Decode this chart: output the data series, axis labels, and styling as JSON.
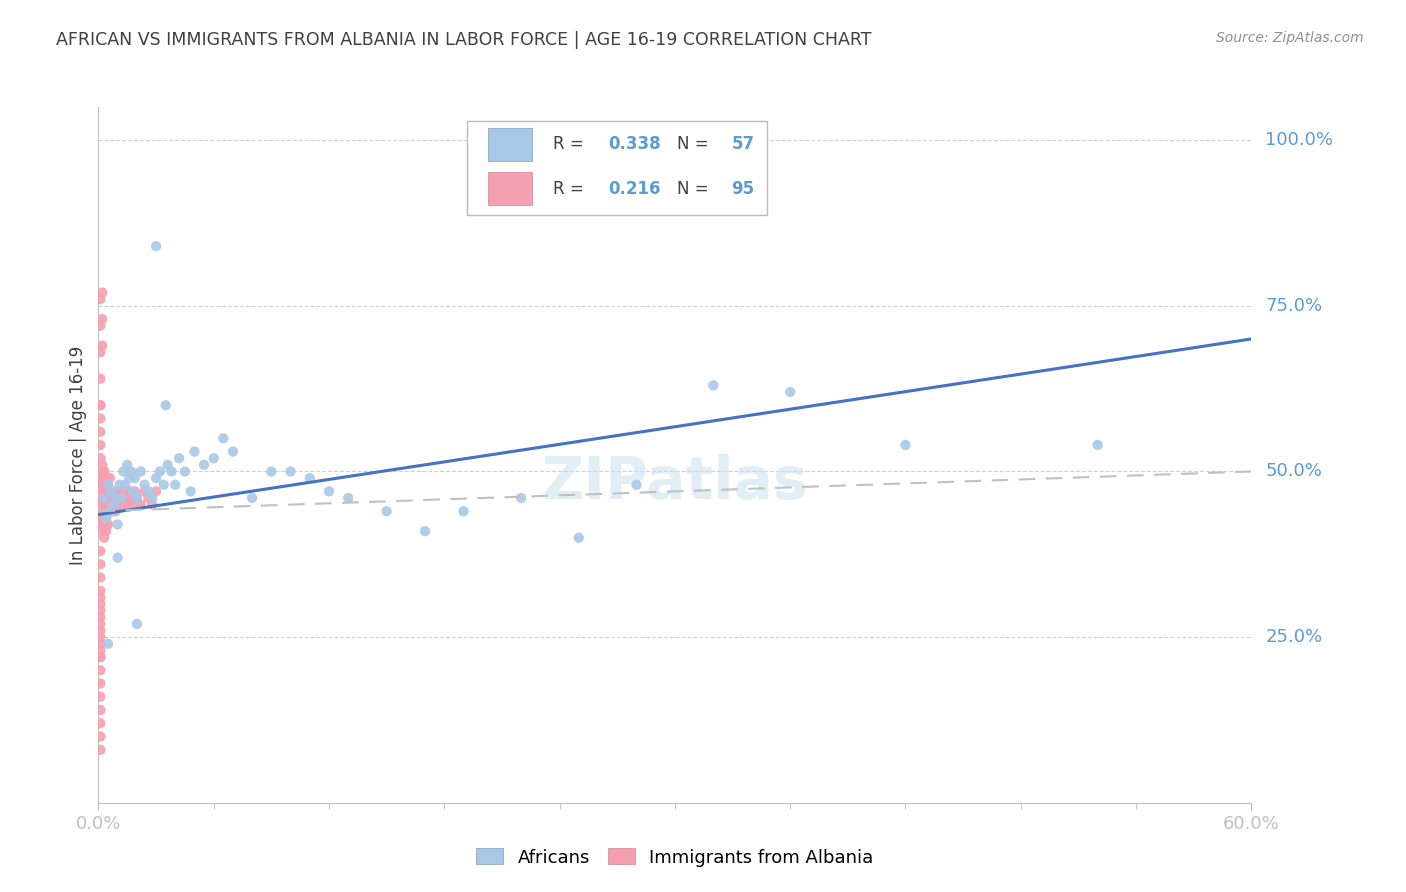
{
  "title": "AFRICAN VS IMMIGRANTS FROM ALBANIA IN LABOR FORCE | AGE 16-19 CORRELATION CHART",
  "source": "Source: ZipAtlas.com",
  "ylabel": "In Labor Force | Age 16-19",
  "xlim": [
    0.0,
    0.6
  ],
  "ylim": [
    0.0,
    1.05
  ],
  "ytick_vals": [
    0.25,
    0.5,
    0.75,
    1.0
  ],
  "ytick_labels": [
    "25.0%",
    "50.0%",
    "75.0%",
    "100.0%"
  ],
  "xtick_vals": [
    0.0,
    0.6
  ],
  "xtick_labels": [
    "0.0%",
    "60.0%"
  ],
  "legend_africans_R": "0.338",
  "legend_africans_N": "57",
  "legend_albania_R": "0.216",
  "legend_albania_N": "95",
  "color_africans": "#a8c8e8",
  "color_albania": "#f4a0b0",
  "color_trend_africans": "#4472c4",
  "color_trend_albania": "#c0c0c0",
  "color_ytick_labels": "#5b9bd5",
  "color_xtick_labels": "#5b9bd5",
  "color_grid": "#d0d0d0",
  "color_axis": "#c0c0c0",
  "color_title": "#404040",
  "color_source": "#909090",
  "watermark": "ZIPatlas",
  "af_x": [
    0.003,
    0.004,
    0.005,
    0.006,
    0.007,
    0.008,
    0.009,
    0.01,
    0.011,
    0.012,
    0.013,
    0.014,
    0.015,
    0.016,
    0.017,
    0.018,
    0.019,
    0.02,
    0.022,
    0.024,
    0.026,
    0.028,
    0.03,
    0.032,
    0.034,
    0.036,
    0.038,
    0.04,
    0.042,
    0.045,
    0.048,
    0.05,
    0.055,
    0.06,
    0.065,
    0.07,
    0.08,
    0.09,
    0.1,
    0.11,
    0.12,
    0.13,
    0.15,
    0.17,
    0.19,
    0.22,
    0.25,
    0.28,
    0.32,
    0.36,
    0.42,
    0.52,
    0.03,
    0.005,
    0.01,
    0.02,
    0.035
  ],
  "af_y": [
    0.46,
    0.43,
    0.48,
    0.44,
    0.47,
    0.45,
    0.46,
    0.42,
    0.48,
    0.46,
    0.5,
    0.48,
    0.51,
    0.49,
    0.5,
    0.47,
    0.49,
    0.46,
    0.5,
    0.48,
    0.47,
    0.46,
    0.49,
    0.5,
    0.48,
    0.51,
    0.5,
    0.48,
    0.52,
    0.5,
    0.47,
    0.53,
    0.51,
    0.52,
    0.55,
    0.53,
    0.46,
    0.5,
    0.5,
    0.49,
    0.47,
    0.46,
    0.44,
    0.41,
    0.44,
    0.46,
    0.4,
    0.48,
    0.63,
    0.62,
    0.54,
    0.54,
    0.84,
    0.24,
    0.37,
    0.27,
    0.6
  ],
  "al_x": [
    0.001,
    0.001,
    0.001,
    0.001,
    0.001,
    0.001,
    0.001,
    0.001,
    0.001,
    0.001,
    0.002,
    0.002,
    0.002,
    0.002,
    0.002,
    0.002,
    0.002,
    0.002,
    0.002,
    0.002,
    0.003,
    0.003,
    0.003,
    0.003,
    0.003,
    0.003,
    0.003,
    0.003,
    0.003,
    0.003,
    0.004,
    0.004,
    0.004,
    0.004,
    0.004,
    0.005,
    0.005,
    0.005,
    0.005,
    0.006,
    0.006,
    0.006,
    0.007,
    0.007,
    0.008,
    0.008,
    0.009,
    0.009,
    0.01,
    0.01,
    0.011,
    0.012,
    0.013,
    0.014,
    0.015,
    0.016,
    0.017,
    0.018,
    0.019,
    0.02,
    0.022,
    0.024,
    0.026,
    0.028,
    0.03,
    0.001,
    0.001,
    0.001,
    0.001,
    0.001,
    0.002,
    0.002,
    0.002,
    0.001,
    0.001,
    0.001,
    0.001,
    0.001,
    0.001,
    0.001,
    0.001,
    0.001,
    0.001,
    0.001,
    0.001,
    0.001,
    0.001,
    0.001,
    0.001,
    0.001,
    0.001,
    0.001,
    0.001,
    0.001,
    0.001
  ],
  "al_y": [
    0.42,
    0.44,
    0.46,
    0.48,
    0.5,
    0.52,
    0.54,
    0.56,
    0.58,
    0.6,
    0.43,
    0.45,
    0.47,
    0.49,
    0.51,
    0.41,
    0.43,
    0.45,
    0.47,
    0.49,
    0.44,
    0.46,
    0.48,
    0.5,
    0.42,
    0.44,
    0.46,
    0.48,
    0.5,
    0.4,
    0.43,
    0.45,
    0.47,
    0.49,
    0.41,
    0.44,
    0.46,
    0.48,
    0.42,
    0.45,
    0.47,
    0.49,
    0.44,
    0.46,
    0.45,
    0.47,
    0.44,
    0.46,
    0.45,
    0.47,
    0.46,
    0.45,
    0.47,
    0.46,
    0.45,
    0.47,
    0.46,
    0.45,
    0.47,
    0.46,
    0.45,
    0.47,
    0.46,
    0.45,
    0.47,
    0.76,
    0.72,
    0.68,
    0.64,
    0.6,
    0.77,
    0.73,
    0.69,
    0.38,
    0.36,
    0.34,
    0.32,
    0.3,
    0.28,
    0.26,
    0.24,
    0.22,
    0.2,
    0.18,
    0.16,
    0.14,
    0.12,
    0.1,
    0.08,
    0.22,
    0.23,
    0.25,
    0.27,
    0.29,
    0.31
  ]
}
